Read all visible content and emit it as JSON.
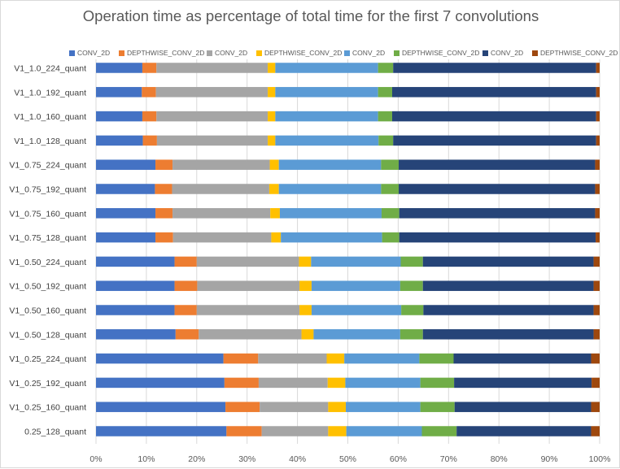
{
  "chart_data": {
    "type": "bar",
    "orientation": "horizontal",
    "stacked": "percent",
    "title": "Operation time as percentage of total time for the first 7 convolutions",
    "xlabel": "",
    "ylabel": "",
    "xlim": [
      0,
      100
    ],
    "x_ticks": [
      "0%",
      "10%",
      "20%",
      "30%",
      "40%",
      "50%",
      "60%",
      "70%",
      "80%",
      "90%",
      "100%"
    ],
    "grid": "vertical",
    "legend_position": "top",
    "categories": [
      "V1_1.0_224_quant",
      "V1_1.0_192_quant",
      "V1_1.0_160_quant",
      "V1_1.0_128_quant",
      "V1_0.75_224_quant",
      "V1_0.75_192_quant",
      "V1_0.75_160_quant",
      "V1_0.75_128_quant",
      "V1_0.50_224_quant",
      "V1_0.50_192_quant",
      "V1_0.50_160_quant",
      "V1_0.50_128_quant",
      "V1_0.25_224_quant",
      "V1_0.25_192_quant",
      "V1_0.25_160_quant",
      "0.25_128_quant"
    ],
    "series": [
      {
        "name": "CONV_2D",
        "color": "#4472C4",
        "values": [
          9.2,
          9.1,
          9.2,
          9.3,
          11.8,
          11.7,
          11.8,
          11.8,
          15.6,
          15.6,
          15.6,
          15.8,
          25.3,
          25.5,
          25.7,
          25.9
        ]
      },
      {
        "name": "DEPTHWISE_CONV_2D",
        "color": "#ED7D31",
        "values": [
          2.8,
          2.8,
          2.8,
          2.8,
          3.4,
          3.4,
          3.4,
          3.5,
          4.4,
          4.5,
          4.4,
          4.6,
          6.9,
          6.8,
          6.8,
          7.0
        ]
      },
      {
        "name": "CONV_2D",
        "color": "#A5A5A5",
        "values": [
          22.1,
          22.2,
          22.1,
          22.0,
          19.3,
          19.3,
          19.4,
          19.5,
          20.3,
          20.3,
          20.4,
          20.4,
          13.6,
          13.7,
          13.6,
          13.2
        ]
      },
      {
        "name": "DEPTHWISE_CONV_2D",
        "color": "#FFC000",
        "values": [
          1.5,
          1.5,
          1.5,
          1.5,
          1.8,
          1.9,
          1.9,
          1.9,
          2.4,
          2.4,
          2.4,
          2.4,
          3.5,
          3.5,
          3.5,
          3.6
        ]
      },
      {
        "name": "CONV_2D",
        "color": "#5B9BD5",
        "values": [
          20.4,
          20.4,
          20.4,
          20.5,
          20.3,
          20.3,
          20.2,
          20.1,
          17.8,
          17.6,
          17.8,
          17.2,
          14.9,
          14.9,
          14.8,
          15.0
        ]
      },
      {
        "name": "DEPTHWISE_CONV_2D",
        "color": "#70AD47",
        "values": [
          3.0,
          2.8,
          2.8,
          2.9,
          3.5,
          3.5,
          3.5,
          3.4,
          4.4,
          4.5,
          4.4,
          4.5,
          6.8,
          6.7,
          6.8,
          6.9
        ]
      },
      {
        "name": "CONV_2D",
        "color": "#264478",
        "values": [
          40.3,
          40.5,
          40.5,
          40.3,
          39.0,
          39.0,
          38.9,
          39.0,
          33.9,
          33.9,
          33.8,
          33.9,
          27.3,
          27.3,
          27.1,
          26.7
        ]
      },
      {
        "name": "DEPTHWISE_CONV_2D",
        "color": "#9E480E",
        "values": [
          0.7,
          0.7,
          0.7,
          0.7,
          0.9,
          0.9,
          0.9,
          0.8,
          1.2,
          1.2,
          1.2,
          1.2,
          1.7,
          1.6,
          1.7,
          1.7
        ]
      }
    ]
  }
}
